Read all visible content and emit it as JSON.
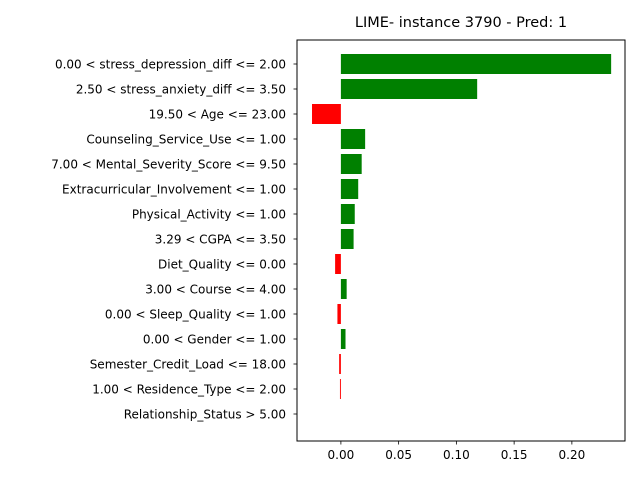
{
  "chart_data": {
    "type": "bar",
    "orientation": "horizontal",
    "title": "LIME- instance 3790 - Pred: 1",
    "xlabel": "",
    "ylabel": "",
    "xlim": [
      -0.038,
      0.246
    ],
    "xticks": [
      "0.00",
      "0.05",
      "0.10",
      "0.15",
      "0.20"
    ],
    "categories": [
      "0.00 < stress_depression_diff <= 2.00",
      "2.50 < stress_anxiety_diff <= 3.50",
      "19.50 < Age <= 23.00",
      "Counseling_Service_Use <= 1.00",
      "7.00 < Mental_Severity_Score <= 9.50",
      "Extracurricular_Involvement <= 1.00",
      "Physical_Activity <= 1.00",
      "3.29 < CGPA <= 3.50",
      "Diet_Quality <= 0.00",
      "3.00 < Course <= 4.00",
      "0.00 < Sleep_Quality <= 1.00",
      "0.00 < Gender <= 1.00",
      "Semester_Credit_Load <= 18.00",
      "1.00 < Residence_Type <= 2.00",
      "Relationship_Status > 5.00"
    ],
    "values": [
      0.234,
      0.118,
      -0.025,
      0.021,
      0.018,
      0.015,
      0.012,
      0.011,
      -0.005,
      0.005,
      -0.003,
      0.004,
      -0.0015,
      -0.0008,
      0.0
    ],
    "colors": {
      "positive": "#008000",
      "negative": "#ff0000"
    },
    "grid": false
  }
}
